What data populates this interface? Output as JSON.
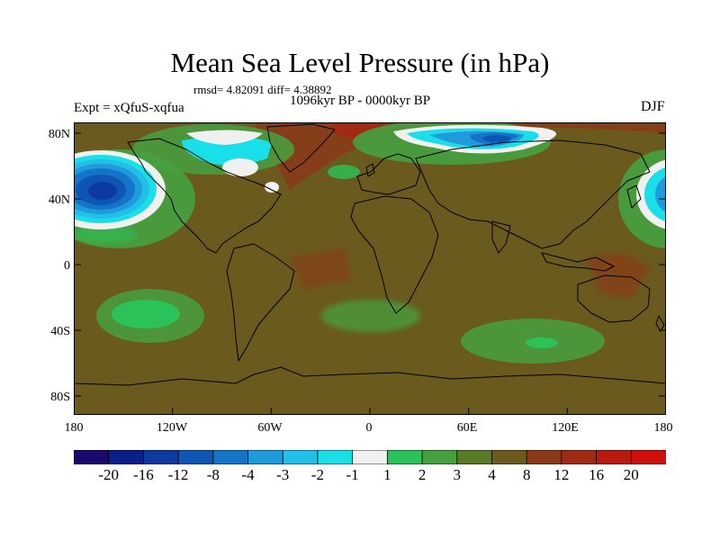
{
  "header": {
    "title": "Mean Sea Level Pressure (in hPa)",
    "rmsd_line": "rmsd= 4.82091 diff= 4.38892",
    "period": "1096kyr BP - 0000kyr BP",
    "experiment": "Expt = xQfuS-xqfua",
    "season": "DJF"
  },
  "axes": {
    "lat_labels": [
      "80N",
      "40N",
      "0",
      "40S",
      "80S"
    ],
    "lat_values": [
      80,
      40,
      0,
      -40,
      -80
    ],
    "lon_labels": [
      "180",
      "120W",
      "60W",
      "0",
      "60E",
      "120E",
      "180"
    ],
    "lon_values": [
      -180,
      -120,
      -60,
      0,
      60,
      120,
      180
    ]
  },
  "colorbar": {
    "labels": [
      "-20",
      "-16",
      "-12",
      "-8",
      "-4",
      "-3",
      "-2",
      "-1",
      "1",
      "2",
      "3",
      "4",
      "8",
      "12",
      "16",
      "20"
    ],
    "colors": [
      "#1a0a6e",
      "#0b1f8a",
      "#0d3aa0",
      "#0f56b4",
      "#1475c8",
      "#1f9bdc",
      "#22bfe8",
      "#18dfe8",
      "#f0f0f0",
      "#2cc25a",
      "#46a040",
      "#5a7a2a",
      "#6a5a1e",
      "#8a3a18",
      "#a02a14",
      "#b81a10",
      "#d0100c"
    ]
  },
  "colors": {
    "background_field": "#6a5a1e",
    "coastline": "#000000"
  }
}
